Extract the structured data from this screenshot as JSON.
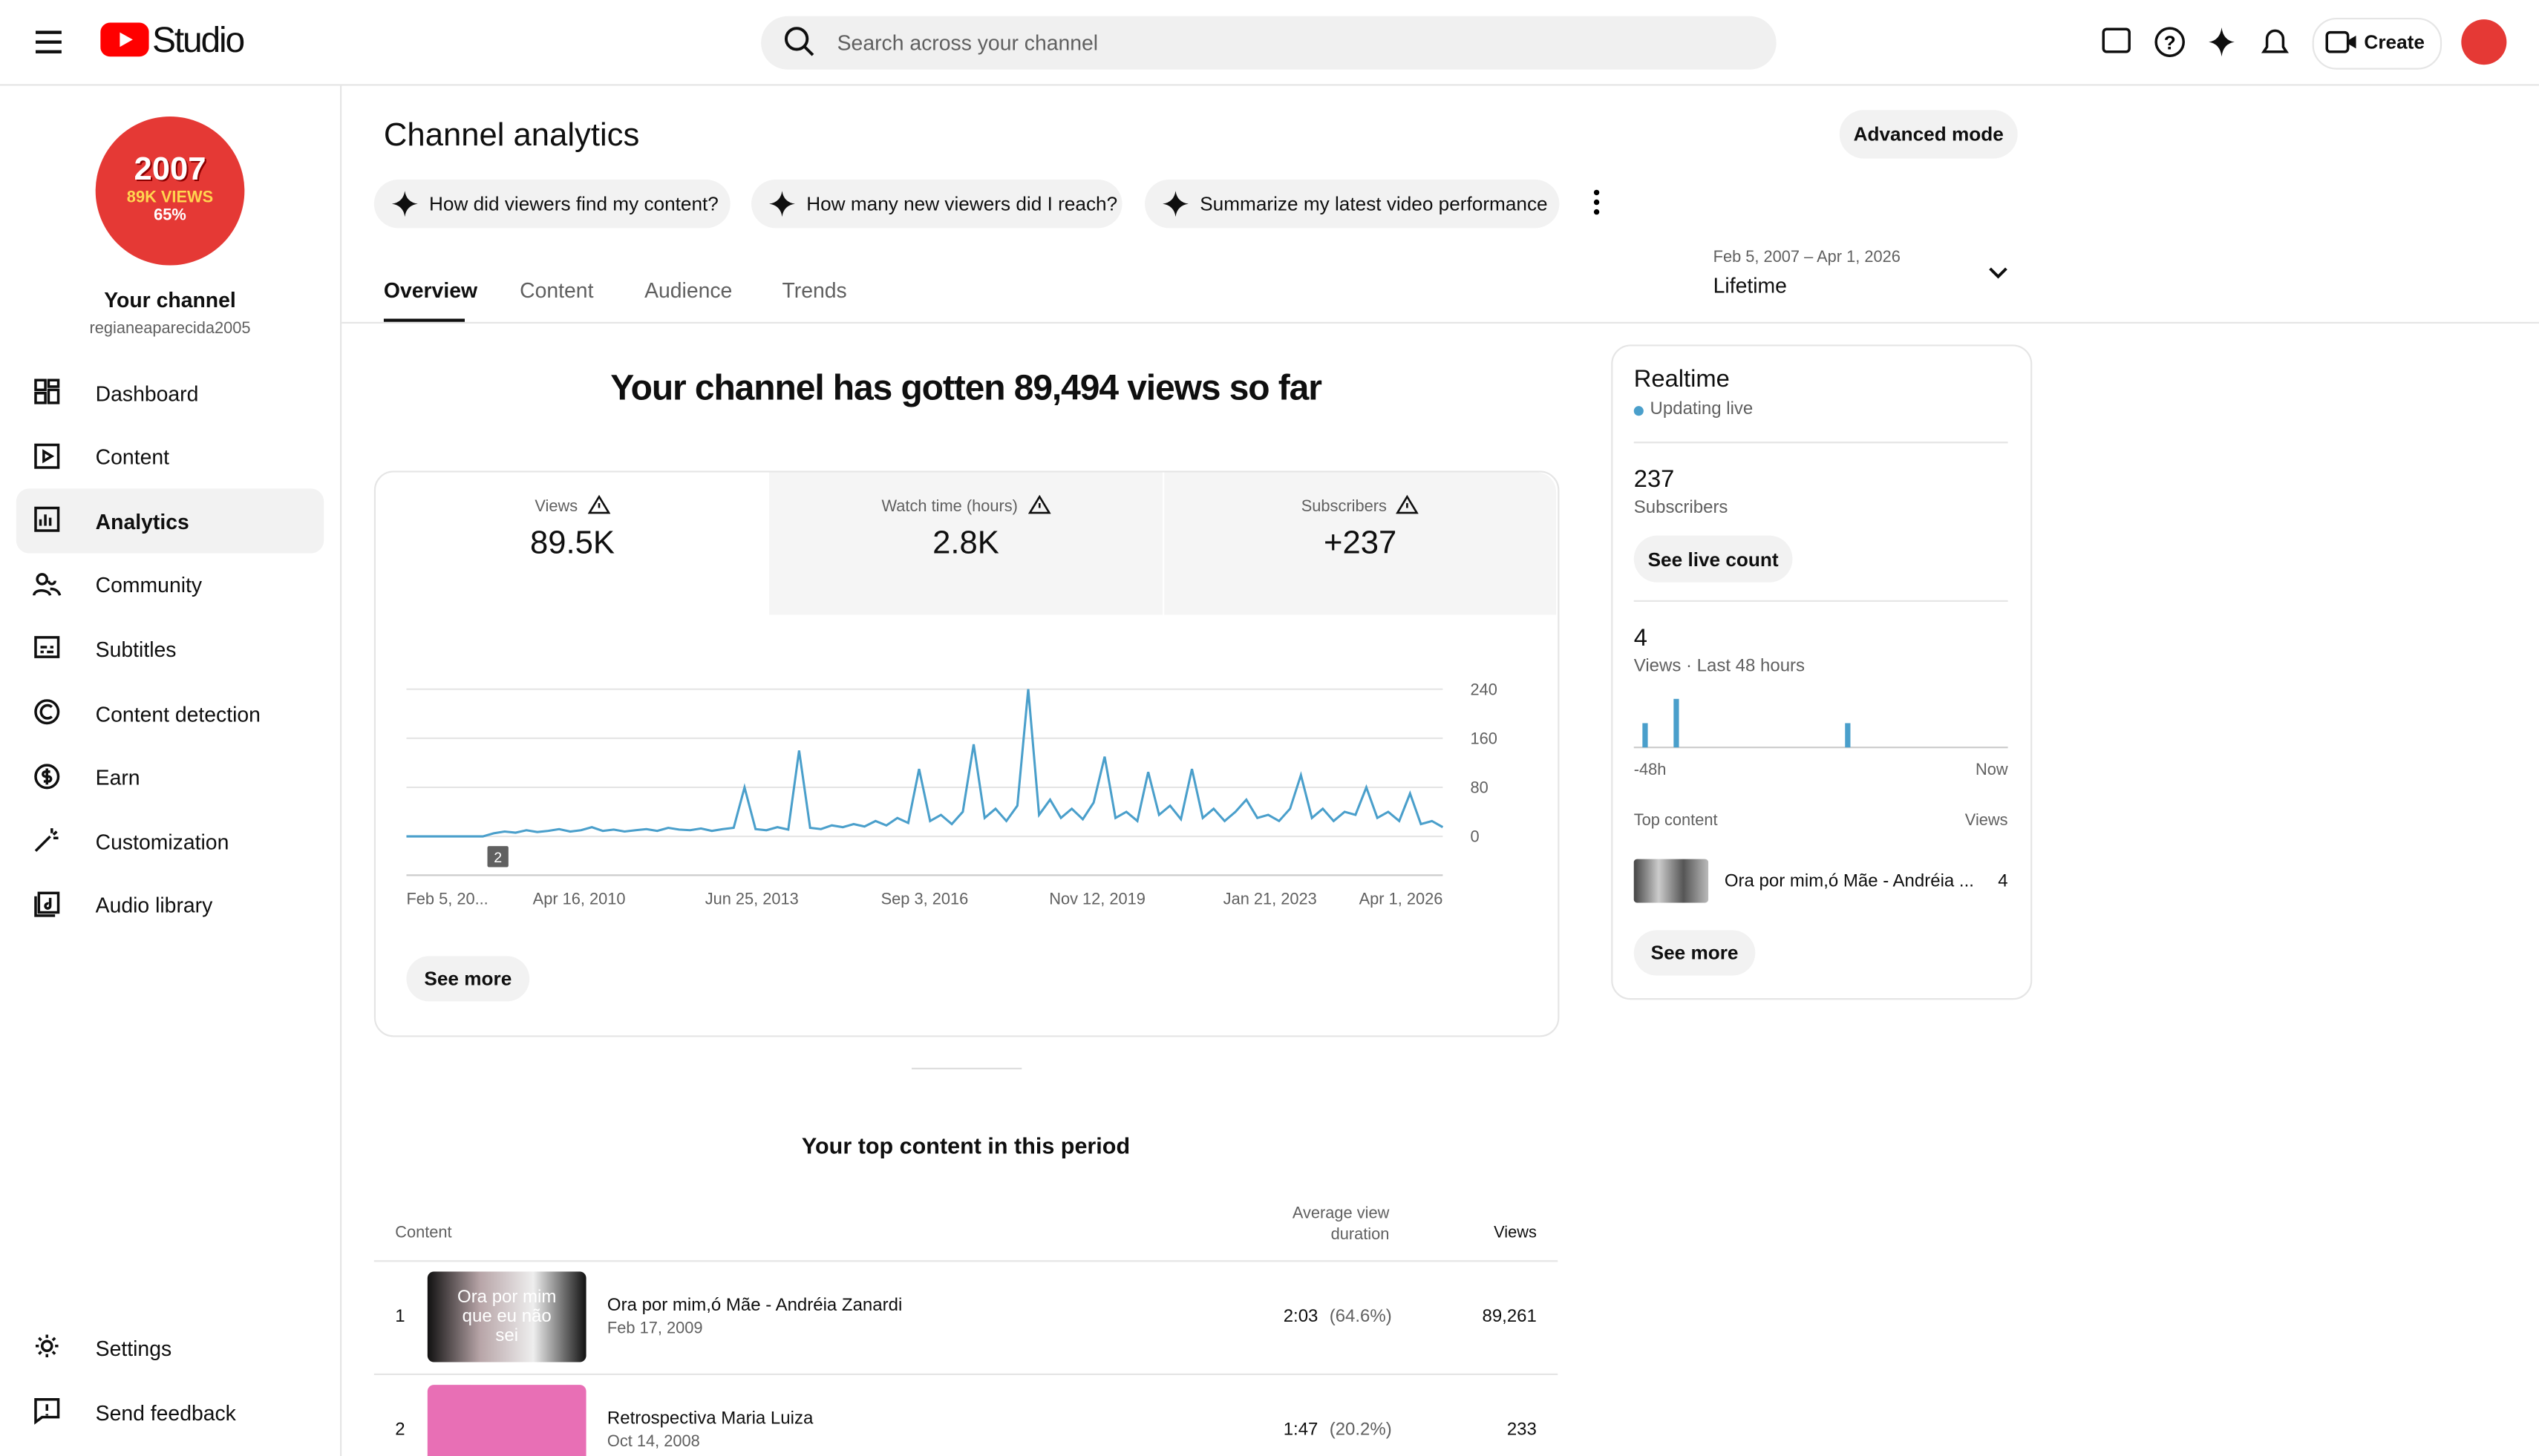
{
  "header": {
    "logo": "Studio",
    "search_placeholder": "Search across your channel",
    "create": "Create"
  },
  "channel": {
    "avatar_year": "2007",
    "avatar_views": "89K VIEWS",
    "avatar_pct": "65%",
    "name": "Your channel",
    "handle": "regianeaparecida2005"
  },
  "nav": [
    "Dashboard",
    "Content",
    "Analytics",
    "Community",
    "Subtitles",
    "Content detection",
    "Earn",
    "Customization",
    "Audio library"
  ],
  "nav_bottom": [
    "Settings",
    "Send feedback"
  ],
  "page": {
    "title": "Channel analytics",
    "advanced": "Advanced mode",
    "prompts": [
      "How did viewers find my content?",
      "How many new viewers did I reach?",
      "Summarize my latest video performance"
    ],
    "tabs": [
      "Overview",
      "Content",
      "Audience",
      "Trends"
    ],
    "date_range": "Feb 5, 2007 – Apr 1, 2026",
    "period": "Lifetime"
  },
  "overview": {
    "headline": "Your channel has gotten 89,494 views so far",
    "metrics": [
      {
        "label": "Views",
        "value": "89.5K"
      },
      {
        "label": "Watch time (hours)",
        "value": "2.8K"
      },
      {
        "label": "Subscribers",
        "value": "+237"
      }
    ],
    "see_more": "See more"
  },
  "chart_data": {
    "type": "line",
    "color": "#4a9fcb",
    "ylim": [
      0,
      240
    ],
    "yticks": [
      0,
      80,
      160,
      240
    ],
    "grid": true,
    "xtick_labels": [
      "Feb 5, 20...",
      "Apr 16, 2010",
      "Jun 25, 2013",
      "Sep 3, 2016",
      "Nov 12, 2019",
      "Jan 21, 2023",
      "Apr 1, 2026"
    ],
    "annotation": "2",
    "values": [
      0,
      0,
      0,
      0,
      0,
      0,
      0,
      0,
      5,
      8,
      6,
      10,
      7,
      9,
      12,
      8,
      10,
      15,
      9,
      11,
      8,
      10,
      12,
      9,
      14,
      11,
      10,
      13,
      9,
      12,
      14,
      80,
      12,
      10,
      15,
      11,
      140,
      14,
      12,
      18,
      15,
      20,
      16,
      25,
      18,
      30,
      22,
      110,
      25,
      35,
      20,
      40,
      150,
      30,
      45,
      25,
      50,
      240,
      35,
      60,
      30,
      45,
      28,
      55,
      130,
      30,
      40,
      25,
      105,
      35,
      50,
      28,
      110,
      30,
      45,
      25,
      40,
      60,
      30,
      35,
      25,
      45,
      100,
      30,
      45,
      25,
      40,
      35,
      80,
      30,
      40,
      25,
      70,
      20,
      25,
      15
    ]
  },
  "realtime": {
    "title": "Realtime",
    "status": "Updating live",
    "subscribers": "237",
    "subscribers_label": "Subscribers",
    "live_button": "See live count",
    "views": "4",
    "views_label": "Views · Last 48 hours",
    "start_label": "-48h",
    "end_label": "Now",
    "top_label": "Top content",
    "views_col": "Views",
    "top_title": "Ora por mim,ó Mãe - Andréia ...",
    "top_views": "4",
    "see_more": "See more",
    "chart": {
      "type": "bar",
      "color": "#4a9fcb",
      "ylim": [
        0,
        2
      ],
      "values": [
        0,
        1,
        0,
        0,
        0,
        2,
        0,
        0,
        0,
        0,
        0,
        0,
        0,
        0,
        0,
        0,
        0,
        0,
        0,
        0,
        0,
        0,
        0,
        0,
        0,
        0,
        0,
        1,
        0,
        0,
        0,
        0,
        0,
        0,
        0,
        0,
        0,
        0,
        0,
        0,
        0,
        0,
        0,
        0,
        0,
        0,
        0,
        0
      ]
    }
  },
  "top_content": {
    "title": "Your top content in this period",
    "col_content": "Content",
    "col_avd": "Average view duration",
    "col_views": "Views",
    "rows": [
      {
        "rank": "1",
        "thumb_text": "Ora por mim que eu não sei",
        "title": "Ora por mim,ó Mãe - Andréia Zanardi",
        "date": "Feb 17, 2009",
        "avd": "2:03",
        "pct": "(64.6%)",
        "views": "89,261"
      },
      {
        "rank": "2",
        "thumb_text": "",
        "title": "Retrospectiva Maria Luiza",
        "date": "Oct 14, 2008",
        "avd": "1:47",
        "pct": "(20.2%)",
        "views": "233"
      }
    ]
  }
}
